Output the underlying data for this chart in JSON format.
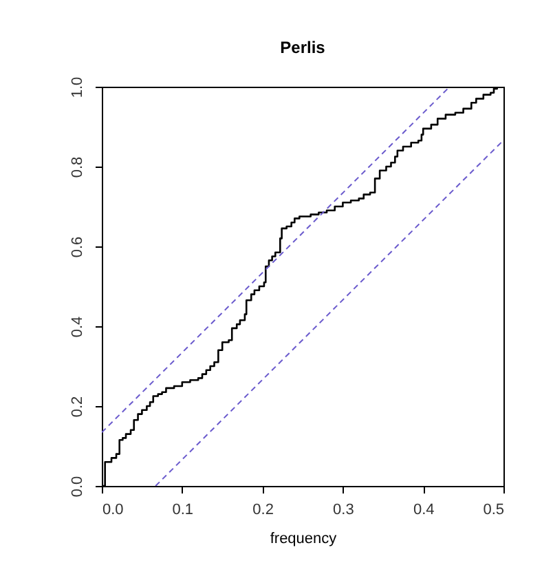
{
  "chart_data": {
    "type": "step",
    "title": "Perlis",
    "xlabel": "frequency",
    "xlim": [
      0,
      0.5
    ],
    "xticks": [
      {
        "value": 0,
        "label": "0.0"
      },
      {
        "value": 0.1,
        "label": "0.1"
      },
      {
        "value": 0.2,
        "label": "0.2"
      },
      {
        "value": 0.3,
        "label": "0.3"
      },
      {
        "value": 0.4,
        "label": "0.4"
      },
      {
        "value": 0.5,
        "label": "0.5"
      }
    ],
    "ylim": [
      0,
      1
    ],
    "yticks": [
      {
        "value": 0,
        "label": "0.0"
      },
      0.2,
      0.4,
      0.6,
      0.8,
      {
        "value": 1,
        "label": "1.0"
      }
    ],
    "grid": false,
    "series": [
      {
        "color": "#000000",
        "line_style": "solid",
        "x": [
          0,
          0.004,
          0.012,
          0.018,
          0.022,
          0.026,
          0.03,
          0.036,
          0.04,
          0.045,
          0.05,
          0.056,
          0.06,
          0.064,
          0.07,
          0.075,
          0.08,
          0.09,
          0.1,
          0.11,
          0.12,
          0.125,
          0.13,
          0.135,
          0.14,
          0.145,
          0.15,
          0.158,
          0.162,
          0.168,
          0.172,
          0.178,
          0.18,
          0.186,
          0.19,
          0.196,
          0.202,
          0.204,
          0.208,
          0.212,
          0.216,
          0.222,
          0.224,
          0.23,
          0.236,
          0.24,
          0.246,
          0.26,
          0.27,
          0.28,
          0.29,
          0.3,
          0.31,
          0.32,
          0.326,
          0.334,
          0.34,
          0.346,
          0.354,
          0.36,
          0.365,
          0.368,
          0.375,
          0.385,
          0.394,
          0.398,
          0.4,
          0.41,
          0.418,
          0.428,
          0.44,
          0.45,
          0.46,
          0.466,
          0.475,
          0.484,
          0.488,
          0.492
        ],
        "values": [
          0,
          0.06,
          0.07,
          0.08,
          0.115,
          0.12,
          0.13,
          0.14,
          0.165,
          0.18,
          0.19,
          0.2,
          0.21,
          0.225,
          0.23,
          0.235,
          0.245,
          0.25,
          0.26,
          0.265,
          0.27,
          0.28,
          0.29,
          0.3,
          0.31,
          0.34,
          0.36,
          0.365,
          0.395,
          0.405,
          0.415,
          0.43,
          0.465,
          0.48,
          0.49,
          0.5,
          0.51,
          0.55,
          0.565,
          0.575,
          0.585,
          0.62,
          0.645,
          0.65,
          0.66,
          0.67,
          0.675,
          0.68,
          0.685,
          0.69,
          0.7,
          0.71,
          0.715,
          0.72,
          0.73,
          0.735,
          0.77,
          0.79,
          0.8,
          0.81,
          0.825,
          0.84,
          0.85,
          0.86,
          0.865,
          0.88,
          0.895,
          0.905,
          0.92,
          0.93,
          0.935,
          0.945,
          0.96,
          0.97,
          0.98,
          0.985,
          0.995,
          1.0
        ]
      },
      {
        "type": "line",
        "color": "#6a5acd",
        "line_style": "dashed",
        "x": [
          0,
          0.433
        ],
        "values": [
          0.134,
          1.0
        ]
      },
      {
        "type": "line",
        "color": "#6a5acd",
        "line_style": "dashed",
        "x": [
          0.067,
          0.5
        ],
        "values": [
          0,
          0.866
        ]
      }
    ]
  }
}
